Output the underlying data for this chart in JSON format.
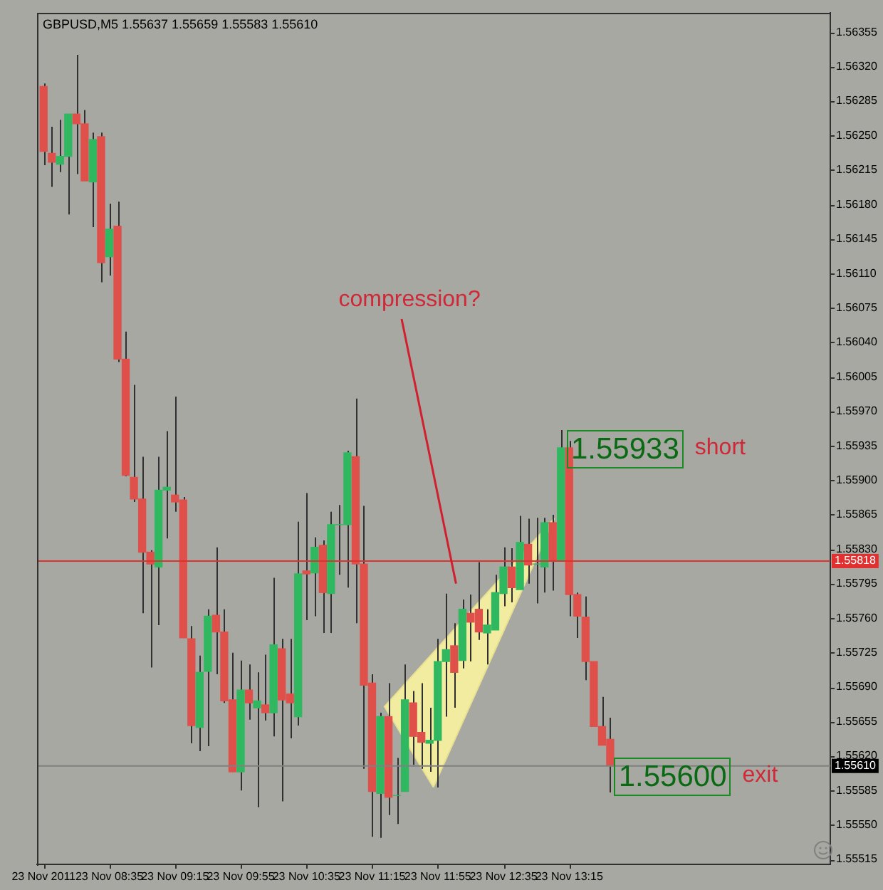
{
  "chart_data": {
    "type": "candlestick",
    "title": "GBPUSD,M5 1.55637 1.55659 1.55583 1.55610",
    "x": [
      "2011-11-23T07:55",
      "2011-11-23T08:00",
      "2011-11-23T08:05",
      "2011-11-23T08:10",
      "2011-11-23T08:15",
      "2011-11-23T08:20",
      "2011-11-23T08:25",
      "2011-11-23T08:30",
      "2011-11-23T08:35",
      "2011-11-23T08:40",
      "2011-11-23T08:45",
      "2011-11-23T08:50",
      "2011-11-23T08:55",
      "2011-11-23T09:00",
      "2011-11-23T09:05",
      "2011-11-23T09:10",
      "2011-11-23T09:15",
      "2011-11-23T09:20",
      "2011-11-23T09:25",
      "2011-11-23T09:30",
      "2011-11-23T09:35",
      "2011-11-23T09:40",
      "2011-11-23T09:45",
      "2011-11-23T09:50",
      "2011-11-23T09:55",
      "2011-11-23T10:00",
      "2011-11-23T10:05",
      "2011-11-23T10:10",
      "2011-11-23T10:15",
      "2011-11-23T10:20",
      "2011-11-23T10:25",
      "2011-11-23T10:30",
      "2011-11-23T10:35",
      "2011-11-23T10:40",
      "2011-11-23T10:45",
      "2011-11-23T10:50",
      "2011-11-23T10:55",
      "2011-11-23T11:00",
      "2011-11-23T11:05",
      "2011-11-23T11:10",
      "2011-11-23T11:15",
      "2011-11-23T11:20",
      "2011-11-23T11:25",
      "2011-11-23T11:30",
      "2011-11-23T11:35",
      "2011-11-23T11:40",
      "2011-11-23T11:45",
      "2011-11-23T11:50",
      "2011-11-23T11:55",
      "2011-11-23T12:00",
      "2011-11-23T12:05",
      "2011-11-23T12:10",
      "2011-11-23T12:15",
      "2011-11-23T12:20",
      "2011-11-23T12:25",
      "2011-11-23T12:30",
      "2011-11-23T12:35",
      "2011-11-23T12:40",
      "2011-11-23T12:45",
      "2011-11-23T12:50",
      "2011-11-23T12:55",
      "2011-11-23T13:00",
      "2011-11-23T13:05",
      "2011-11-23T13:10",
      "2011-11-23T13:15",
      "2011-11-23T13:20",
      "2011-11-23T13:25",
      "2011-11-23T13:30",
      "2011-11-23T13:35",
      "2011-11-23T13:40"
    ],
    "xlim": [
      "2011-11-23T07:51",
      "2011-11-23T15:54"
    ],
    "xticks": [
      {
        "value": "2011-11-23T07:55",
        "label": "23 Nov 2011"
      },
      {
        "value": "2011-11-23T08:35",
        "label": "23 Nov 08:35"
      },
      {
        "value": "2011-11-23T09:15",
        "label": "23 Nov 09:15"
      },
      {
        "value": "2011-11-23T09:55",
        "label": "23 Nov 09:55"
      },
      {
        "value": "2011-11-23T10:35",
        "label": "23 Nov 10:35"
      },
      {
        "value": "2011-11-23T11:15",
        "label": "23 Nov 11:15"
      },
      {
        "value": "2011-11-23T11:55",
        "label": "23 Nov 11:55"
      },
      {
        "value": "2011-11-23T12:35",
        "label": "23 Nov 12:35"
      },
      {
        "value": "2011-11-23T13:15",
        "label": "23 Nov 13:15"
      }
    ],
    "ohlc": [
      [
        1.563,
        1.56303,
        1.5622,
        1.56234
      ],
      [
        1.56232,
        1.56259,
        1.56198,
        1.56223
      ],
      [
        1.56221,
        1.56266,
        1.56213,
        1.56229
      ],
      [
        1.56229,
        1.56272,
        1.5617,
        1.56272
      ],
      [
        1.56272,
        1.56332,
        1.56211,
        1.56262
      ],
      [
        1.56262,
        1.56276,
        1.56204,
        1.56204
      ],
      [
        1.56203,
        1.56253,
        1.56157,
        1.56246
      ],
      [
        1.56249,
        1.56253,
        1.56101,
        1.56121
      ],
      [
        1.56127,
        1.56181,
        1.56108,
        1.56155
      ],
      [
        1.56158,
        1.56183,
        1.5602,
        1.56023
      ],
      [
        1.56023,
        1.56051,
        1.55904,
        1.55905
      ],
      [
        1.55903,
        1.55997,
        1.55878,
        1.55881
      ],
      [
        1.55881,
        1.55924,
        1.55765,
        1.55827
      ],
      [
        1.55827,
        1.55829,
        1.5571,
        1.55815
      ],
      [
        1.55812,
        1.55924,
        1.55753,
        1.5589
      ],
      [
        1.5589,
        1.5595,
        1.55841,
        1.55893
      ],
      [
        1.55885,
        1.55985,
        1.55868,
        1.55878
      ],
      [
        1.5588,
        1.55883,
        1.5574,
        1.5574
      ],
      [
        1.55739,
        1.55752,
        1.55633,
        1.55651
      ],
      [
        1.55649,
        1.55722,
        1.55625,
        1.55705
      ],
      [
        1.55706,
        1.55769,
        1.5563,
        1.55762
      ],
      [
        1.55763,
        1.55832,
        1.55703,
        1.55746
      ],
      [
        1.55746,
        1.55769,
        1.55674,
        1.55676
      ],
      [
        1.55677,
        1.55725,
        1.55604,
        1.55604
      ],
      [
        1.55604,
        1.55717,
        1.55585,
        1.55687
      ],
      [
        1.55687,
        1.55713,
        1.55657,
        1.55674
      ],
      [
        1.55669,
        1.55705,
        1.55568,
        1.55676
      ],
      [
        1.55672,
        1.55723,
        1.55656,
        1.55664
      ],
      [
        1.55664,
        1.55801,
        1.5564,
        1.55733
      ],
      [
        1.55729,
        1.55739,
        1.55574,
        1.55677
      ],
      [
        1.55683,
        1.55739,
        1.55638,
        1.55674
      ],
      [
        1.5566,
        1.55858,
        1.55651,
        1.55805
      ],
      [
        1.55808,
        1.55887,
        1.55758,
        1.55805
      ],
      [
        1.55806,
        1.55842,
        1.55762,
        1.55832
      ],
      [
        1.55834,
        1.55839,
        1.55745,
        1.55786
      ],
      [
        1.55785,
        1.55868,
        1.55745,
        1.55855
      ],
      [
        1.55855,
        1.55875,
        1.55804,
        1.55855
      ],
      [
        1.55855,
        1.5593,
        1.55791,
        1.55928
      ],
      [
        1.55924,
        1.55983,
        1.55755,
        1.55815
      ],
      [
        1.55815,
        1.55874,
        1.55607,
        1.55692
      ],
      [
        1.55694,
        1.55703,
        1.55538,
        1.55584
      ],
      [
        1.55582,
        1.55664,
        1.55537,
        1.5566
      ],
      [
        1.5566,
        1.55694,
        1.5556,
        1.55578
      ],
      [
        1.5558,
        1.55618,
        1.55551,
        1.5558
      ],
      [
        1.55584,
        1.55713,
        1.55584,
        1.55677
      ],
      [
        1.55674,
        1.55686,
        1.55611,
        1.5564
      ],
      [
        1.55644,
        1.55694,
        1.55607,
        1.55634
      ],
      [
        1.55633,
        1.55669,
        1.55604,
        1.55636
      ],
      [
        1.55636,
        1.55739,
        1.55588,
        1.55716
      ],
      [
        1.55716,
        1.55785,
        1.5566,
        1.55728
      ],
      [
        1.55732,
        1.55755,
        1.55669,
        1.55705
      ],
      [
        1.55717,
        1.55779,
        1.55709,
        1.55769
      ],
      [
        1.55765,
        1.55784,
        1.55716,
        1.55756
      ],
      [
        1.55769,
        1.55817,
        1.55738,
        1.55746
      ],
      [
        1.55745,
        1.55769,
        1.55713,
        1.55753
      ],
      [
        1.55748,
        1.55804,
        1.55748,
        1.55786
      ],
      [
        1.55785,
        1.55832,
        1.55772,
        1.55812
      ],
      [
        1.55812,
        1.55831,
        1.55776,
        1.55791
      ],
      [
        1.55789,
        1.55864,
        1.55789,
        1.55837
      ],
      [
        1.55835,
        1.55861,
        1.55795,
        1.55814
      ],
      [
        1.55815,
        1.55862,
        1.55775,
        1.55815
      ],
      [
        1.55812,
        1.55862,
        1.55786,
        1.55857
      ],
      [
        1.55857,
        1.55865,
        1.55788,
        1.55818
      ],
      [
        1.55818,
        1.55951,
        1.55818,
        1.55933
      ],
      [
        1.55933,
        1.5594,
        1.55762,
        1.55784
      ],
      [
        1.55784,
        1.55786,
        1.5574,
        1.55762
      ],
      [
        1.55761,
        1.55782,
        1.55697,
        1.55716
      ],
      [
        1.55716,
        1.55716,
        1.5565,
        1.5565
      ],
      [
        1.5565,
        1.5568,
        1.55631,
        1.55631
      ],
      [
        1.55637,
        1.55659,
        1.55583,
        1.5561
      ]
    ],
    "colors": [
      "#e0504a",
      "#e0504a",
      "#30b860",
      "#30b860",
      "#e0504a",
      "#e0504a",
      "#30b860",
      "#e0504a",
      "#30b860",
      "#e0504a",
      "#e0504a",
      "#e0504a",
      "#e0504a",
      "#e0504a",
      "#30b860",
      "#30b860",
      "#e0504a",
      "#e0504a",
      "#e0504a",
      "#30b860",
      "#30b860",
      "#e0504a",
      "#e0504a",
      "#e0504a",
      "#30b860",
      "#e0504a",
      "#30b860",
      "#e0504a",
      "#30b860",
      "#e0504a",
      "#e0504a",
      "#30b860",
      "#e0504a",
      "#30b860",
      "#e0504a",
      "#30b860",
      "#30b860",
      "#30b860",
      "#e0504a",
      "#e0504a",
      "#e0504a",
      "#30b860",
      "#e0504a",
      "#30b860",
      "#30b860",
      "#e0504a",
      "#e0504a",
      "#30b860",
      "#30b860",
      "#30b860",
      "#e0504a",
      "#30b860",
      "#e0504a",
      "#e0504a",
      "#30b860",
      "#30b860",
      "#30b860",
      "#e0504a",
      "#30b860",
      "#e0504a",
      "#30b860",
      "#30b860",
      "#e0504a",
      "#30b860",
      "#e0504a",
      "#e0504a",
      "#e0504a",
      "#e0504a",
      "#e0504a",
      "#e0504a"
    ],
    "ylim": [
      1.5551,
      1.56375
    ],
    "yticks": [
      1.56355,
      {
        "value": 1.5632,
        "label": "1.56320"
      },
      1.56285,
      {
        "value": 1.5625,
        "label": "1.56250"
      },
      1.56215,
      {
        "value": 1.5618,
        "label": "1.56180"
      },
      1.56145,
      {
        "value": 1.5611,
        "label": "1.56110"
      },
      1.56075,
      {
        "value": 1.5604,
        "label": "1.56040"
      },
      1.56005,
      {
        "value": 1.5597,
        "label": "1.55970"
      },
      1.55935,
      {
        "value": 1.559,
        "label": "1.55900"
      },
      1.55865,
      {
        "value": 1.5583,
        "label": "1.55830"
      },
      1.55795,
      {
        "value": 1.5576,
        "label": "1.55760"
      },
      1.55725,
      {
        "value": 1.5569,
        "label": "1.55690"
      },
      1.55655,
      {
        "value": 1.5562,
        "label": "1.55620"
      },
      1.55585,
      {
        "value": 1.5555,
        "label": "1.55550"
      },
      1.55515
    ],
    "ref_lines": [
      {
        "axis": "y",
        "value": 1.55818,
        "label": "1.55818",
        "color": "#e03030"
      },
      {
        "axis": "y",
        "value": 1.5561,
        "label": "1.55610",
        "color": "#808080"
      }
    ],
    "annotations": [
      "compression?",
      "1.55933",
      "short",
      "1.55600",
      "exit"
    ],
    "grid": false,
    "legend": false
  }
}
